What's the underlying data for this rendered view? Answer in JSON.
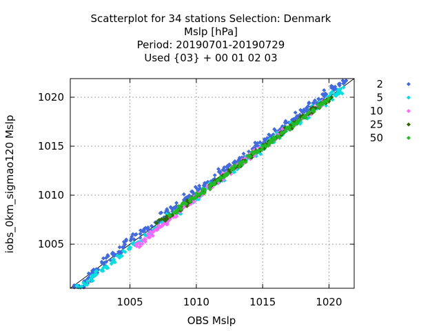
{
  "chart_data": {
    "type": "scatter",
    "title_lines": [
      "Scatterplot for   34 stations Selection: Denmark",
      "Mslp [hPa]",
      "Period: 20190701-20190729",
      "Used {03} + 00 01 02 03"
    ],
    "xlabel": "OBS Mslp",
    "ylabel": "iobs_0km_sigmao120 Mslp",
    "xlim": [
      1000.5,
      1021.9
    ],
    "ylim": [
      1000.5,
      1021.9
    ],
    "xticks": [
      1005,
      1010,
      1015,
      1020
    ],
    "yticks": [
      1005,
      1010,
      1015,
      1020
    ],
    "grid": true,
    "diagonal_line": true,
    "legend_position": "right",
    "series": [
      {
        "name": "2",
        "color": "#4169e1",
        "marker": "diamond",
        "spread": 0.6,
        "points": [
          [
            1000.8,
            1000.6
          ],
          [
            1001.5,
            1000.7
          ],
          [
            1001.9,
            1001.6
          ],
          [
            1002.3,
            1002.1
          ],
          [
            1002.6,
            1002.4
          ],
          [
            1003.2,
            1003.6
          ],
          [
            1003.8,
            1004.0
          ],
          [
            1004.1,
            1003.9
          ],
          [
            1004.6,
            1005.0
          ],
          [
            1005.3,
            1005.5
          ],
          [
            1005.8,
            1006.4
          ],
          [
            1006.3,
            1006.6
          ],
          [
            1006.6,
            1006.2
          ],
          [
            1007.2,
            1007.3
          ],
          [
            1007.8,
            1008.4
          ],
          [
            1008.2,
            1008.6
          ],
          [
            1008.5,
            1008.9
          ],
          [
            1009.3,
            1009.8
          ],
          [
            1009.8,
            1010.0
          ],
          [
            1010.2,
            1010.6
          ],
          [
            1010.7,
            1011.2
          ],
          [
            1011.3,
            1011.4
          ],
          [
            1011.8,
            1012.4
          ],
          [
            1012.3,
            1012.6
          ],
          [
            1012.8,
            1013.3
          ],
          [
            1013.2,
            1013.6
          ],
          [
            1013.8,
            1014.0
          ],
          [
            1014.3,
            1014.8
          ],
          [
            1014.8,
            1015.4
          ],
          [
            1015.3,
            1015.6
          ],
          [
            1015.8,
            1016.2
          ],
          [
            1016.3,
            1016.6
          ],
          [
            1016.8,
            1017.4
          ],
          [
            1017.3,
            1017.6
          ],
          [
            1017.8,
            1018.2
          ],
          [
            1018.3,
            1018.6
          ],
          [
            1018.8,
            1019.4
          ],
          [
            1019.3,
            1019.6
          ],
          [
            1019.8,
            1020.3
          ],
          [
            1020.3,
            1020.9
          ],
          [
            1020.8,
            1021.2
          ],
          [
            1021.3,
            1021.7
          ]
        ]
      },
      {
        "name": "5",
        "color": "#00e0e0",
        "marker": "diamond",
        "spread": 0.55,
        "points": [
          [
            1001.0,
            1000.8
          ],
          [
            1001.8,
            1001.2
          ],
          [
            1002.4,
            1001.9
          ],
          [
            1002.9,
            1002.4
          ],
          [
            1003.6,
            1003.0
          ],
          [
            1004.2,
            1003.7
          ],
          [
            1004.9,
            1004.5
          ],
          [
            1005.6,
            1005.2
          ],
          [
            1006.2,
            1005.9
          ],
          [
            1006.8,
            1006.5
          ],
          [
            1007.4,
            1007.2
          ],
          [
            1008.1,
            1008.0
          ],
          [
            1008.7,
            1008.4
          ],
          [
            1009.3,
            1009.1
          ],
          [
            1009.9,
            1009.6
          ],
          [
            1010.5,
            1010.4
          ],
          [
            1011.1,
            1011.0
          ],
          [
            1011.7,
            1011.5
          ],
          [
            1012.3,
            1012.2
          ],
          [
            1012.9,
            1012.7
          ],
          [
            1013.5,
            1013.3
          ],
          [
            1014.1,
            1014.0
          ],
          [
            1014.7,
            1014.5
          ],
          [
            1015.3,
            1015.1
          ],
          [
            1015.9,
            1015.8
          ],
          [
            1016.5,
            1016.3
          ],
          [
            1017.1,
            1016.9
          ],
          [
            1017.7,
            1017.6
          ],
          [
            1018.3,
            1018.1
          ],
          [
            1018.9,
            1018.8
          ],
          [
            1019.5,
            1019.3
          ],
          [
            1020.1,
            1020.0
          ],
          [
            1020.6,
            1020.4
          ],
          [
            1021.1,
            1021.0
          ]
        ]
      },
      {
        "name": "10",
        "color": "#ff66ff",
        "marker": "diamond",
        "spread": 0.4,
        "points": [
          [
            1005.5,
            1004.8
          ],
          [
            1006.0,
            1005.4
          ],
          [
            1006.5,
            1005.9
          ],
          [
            1007.0,
            1006.5
          ],
          [
            1007.5,
            1007.0
          ],
          [
            1008.0,
            1007.6
          ],
          [
            1008.5,
            1008.1
          ],
          [
            1009.0,
            1008.7
          ],
          [
            1009.5,
            1009.2
          ],
          [
            1010.0,
            1009.8
          ],
          [
            1010.5,
            1010.3
          ],
          [
            1011.0,
            1010.8
          ],
          [
            1011.5,
            1011.3
          ],
          [
            1012.0,
            1011.9
          ],
          [
            1012.5,
            1012.4
          ],
          [
            1013.0,
            1012.9
          ],
          [
            1013.5,
            1013.4
          ],
          [
            1014.0,
            1013.9
          ],
          [
            1014.5,
            1014.4
          ],
          [
            1015.0,
            1014.9
          ],
          [
            1015.5,
            1015.4
          ],
          [
            1016.0,
            1015.9
          ],
          [
            1016.5,
            1016.4
          ],
          [
            1017.0,
            1016.9
          ],
          [
            1017.5,
            1017.4
          ],
          [
            1018.0,
            1017.9
          ],
          [
            1018.5,
            1018.4
          ],
          [
            1019.0,
            1018.9
          ],
          [
            1019.5,
            1019.4
          ],
          [
            1020.0,
            1019.9
          ]
        ]
      },
      {
        "name": "25",
        "color": "#2e6b00",
        "marker": "diamond",
        "spread": 0.35,
        "points": [
          [
            1007.0,
            1007.2
          ],
          [
            1007.6,
            1007.5
          ],
          [
            1008.2,
            1008.0
          ],
          [
            1008.8,
            1008.7
          ],
          [
            1009.4,
            1009.3
          ],
          [
            1010.0,
            1009.9
          ],
          [
            1010.6,
            1010.5
          ],
          [
            1011.2,
            1011.1
          ],
          [
            1011.8,
            1011.7
          ],
          [
            1012.4,
            1012.3
          ],
          [
            1013.0,
            1012.9
          ],
          [
            1013.6,
            1013.5
          ],
          [
            1014.2,
            1014.1
          ],
          [
            1014.8,
            1014.7
          ],
          [
            1015.4,
            1015.3
          ],
          [
            1016.0,
            1015.9
          ],
          [
            1016.6,
            1016.5
          ],
          [
            1017.2,
            1017.1
          ],
          [
            1017.8,
            1017.7
          ],
          [
            1018.4,
            1018.3
          ],
          [
            1019.0,
            1018.9
          ],
          [
            1019.6,
            1019.5
          ],
          [
            1020.2,
            1020.0
          ]
        ]
      },
      {
        "name": "50",
        "color": "#22bb22",
        "marker": "diamond",
        "spread": 0.35,
        "points": [
          [
            1008.0,
            1007.9
          ],
          [
            1008.6,
            1008.5
          ],
          [
            1009.2,
            1009.1
          ],
          [
            1009.8,
            1009.7
          ],
          [
            1010.4,
            1010.3
          ],
          [
            1011.0,
            1010.9
          ],
          [
            1011.6,
            1011.5
          ],
          [
            1012.2,
            1012.1
          ],
          [
            1012.8,
            1012.7
          ],
          [
            1013.4,
            1013.3
          ],
          [
            1014.0,
            1013.9
          ],
          [
            1014.6,
            1014.5
          ],
          [
            1015.2,
            1015.1
          ],
          [
            1015.8,
            1015.7
          ],
          [
            1016.4,
            1016.3
          ],
          [
            1017.0,
            1016.9
          ],
          [
            1017.6,
            1017.5
          ],
          [
            1018.2,
            1018.1
          ],
          [
            1018.8,
            1018.7
          ],
          [
            1019.4,
            1019.3
          ],
          [
            1020.0,
            1019.9
          ]
        ]
      }
    ]
  }
}
